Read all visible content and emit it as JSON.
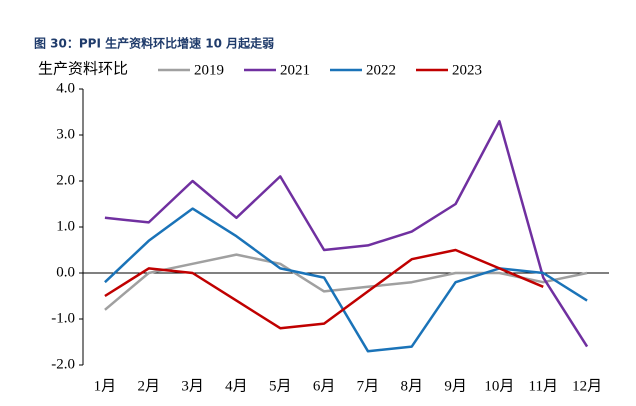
{
  "chart_data": {
    "type": "line",
    "title": "图 30：PPI 生产资料环比增速 10 月起走弱",
    "y_label": "生产资料环比",
    "categories": [
      "1月",
      "2月",
      "3月",
      "4月",
      "5月",
      "6月",
      "7月",
      "8月",
      "9月",
      "10月",
      "11月",
      "12月"
    ],
    "series": [
      {
        "name": "2019",
        "color": "#a0a0a0",
        "values": [
          -0.8,
          0.0,
          0.2,
          0.4,
          0.2,
          -0.4,
          -0.3,
          -0.2,
          0.0,
          0.0,
          -0.2,
          0.0
        ]
      },
      {
        "name": "2021",
        "color": "#7030a0",
        "values": [
          1.2,
          1.1,
          2.0,
          1.2,
          2.1,
          0.5,
          0.6,
          0.9,
          1.5,
          3.3,
          -0.1,
          -1.6
        ]
      },
      {
        "name": "2022",
        "color": "#1a73b8",
        "values": [
          -0.2,
          0.7,
          1.4,
          0.8,
          0.1,
          -0.1,
          -1.7,
          -1.6,
          -0.2,
          0.1,
          0.0,
          -0.6
        ]
      },
      {
        "name": "2023",
        "color": "#c00000",
        "values": [
          -0.5,
          0.1,
          0.0,
          -0.6,
          -1.2,
          -1.1,
          -0.4,
          0.3,
          0.5,
          0.1,
          -0.3,
          null
        ]
      }
    ],
    "ylim": [
      -2,
      4
    ],
    "yticks": [
      {
        "value": -2,
        "label": "-2.0"
      },
      {
        "value": -1,
        "label": "-1.0"
      },
      {
        "value": 0,
        "label": "0.0"
      },
      {
        "value": 1,
        "label": "1.0"
      },
      {
        "value": 2,
        "label": "2.0"
      },
      {
        "value": 3,
        "label": "3.0"
      },
      {
        "value": 4,
        "label": "4.0"
      }
    ],
    "legend": "top"
  }
}
